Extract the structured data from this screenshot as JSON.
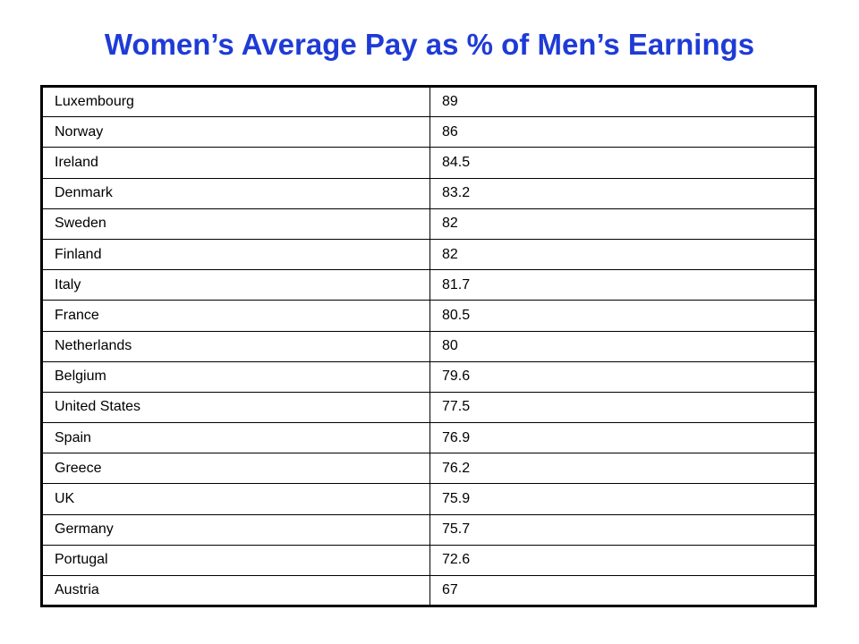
{
  "title": "Women’s Average Pay as % of Men’s Earnings",
  "rows": [
    {
      "country": "Luxembourg",
      "value": "89"
    },
    {
      "country": "Norway",
      "value": "86"
    },
    {
      "country": "Ireland",
      "value": "84.5"
    },
    {
      "country": "Denmark",
      "value": "83.2"
    },
    {
      "country": "Sweden",
      "value": "82"
    },
    {
      "country": "Finland",
      "value": "82"
    },
    {
      "country": "Italy",
      "value": "81.7"
    },
    {
      "country": "France",
      "value": "80.5"
    },
    {
      "country": "Netherlands",
      "value": "80"
    },
    {
      "country": "Belgium",
      "value": "79.6"
    },
    {
      "country": "United States",
      "value": "77.5"
    },
    {
      "country": "Spain",
      "value": "76.9"
    },
    {
      "country": "Greece",
      "value": "76.2"
    },
    {
      "country": "UK",
      "value": "75.9"
    },
    {
      "country": "Germany",
      "value": "75.7"
    },
    {
      "country": "Portugal",
      "value": "72.6"
    },
    {
      "country": "Austria",
      "value": "67"
    }
  ],
  "colors": {
    "title": "#1f3bd6",
    "text": "#000000",
    "border": "#000000",
    "background": "#ffffff"
  }
}
